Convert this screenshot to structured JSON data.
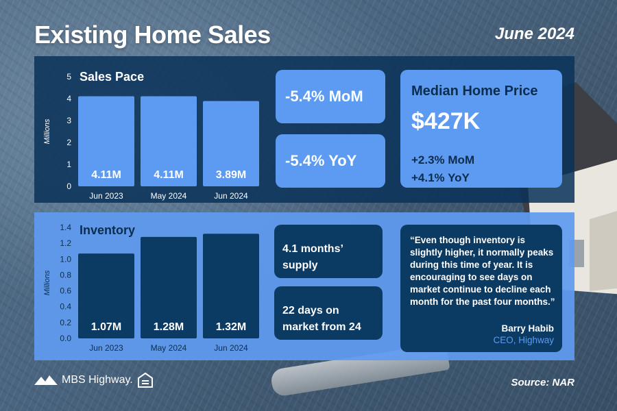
{
  "header": {
    "title": "Existing Home Sales",
    "date": "June 2024"
  },
  "sales_chart": {
    "title": "Sales Pace",
    "ylabel": "Millions"
  },
  "inventory_chart": {
    "title": "Inventory",
    "ylabel": "Millions"
  },
  "sales_stats": {
    "mom": "-5.4% MoM",
    "yoy": "-5.4% YoY"
  },
  "median": {
    "title": "Median Home Price",
    "price": "$427K",
    "mom": "+2.3% MoM",
    "yoy": "+4.1% YoY"
  },
  "inventory_stats": {
    "supply_line1": "4.1 months’",
    "supply_line2": "supply",
    "days_line1": "22 days on",
    "days_line2": "market from 24"
  },
  "quote": {
    "text": "“Even though inventory is slightly higher, it normally peaks during this time of year. It is encouraging to see days on market continue to decline each month for the past four months.”",
    "author": "Barry Habib",
    "role": "CEO, Highway"
  },
  "footer": {
    "brand": "MBS Highway.",
    "source": "Source: NAR"
  },
  "colors": {
    "dark_panel": "#0a3259",
    "light_panel": "#609bf0",
    "light_bar": "#5d9bf2",
    "dark_bar": "#0b3a63"
  },
  "chart_data": [
    {
      "type": "bar",
      "title": "Sales Pace",
      "ylabel": "Millions",
      "categories": [
        "Jun 2023",
        "May 2024",
        "Jun 2024"
      ],
      "values": [
        4.11,
        4.11,
        3.89
      ],
      "labels": [
        "4.11M",
        "4.11M",
        "3.89M"
      ],
      "yticks": [
        0,
        1,
        2,
        3,
        4,
        5
      ],
      "ylim": [
        0,
        5
      ],
      "grid": false
    },
    {
      "type": "bar",
      "title": "Inventory",
      "ylabel": "Millions",
      "categories": [
        "Jun 2023",
        "May 2024",
        "Jun 2024"
      ],
      "values": [
        1.07,
        1.28,
        1.32
      ],
      "labels": [
        "1.07M",
        "1.28M",
        "1.32M"
      ],
      "yticks": [
        "0.0",
        "0.2",
        "0.4",
        "0.6",
        "0.8",
        "1.0",
        "1.2",
        "1.4"
      ],
      "ylim": [
        0,
        1.4
      ],
      "grid": false
    }
  ]
}
